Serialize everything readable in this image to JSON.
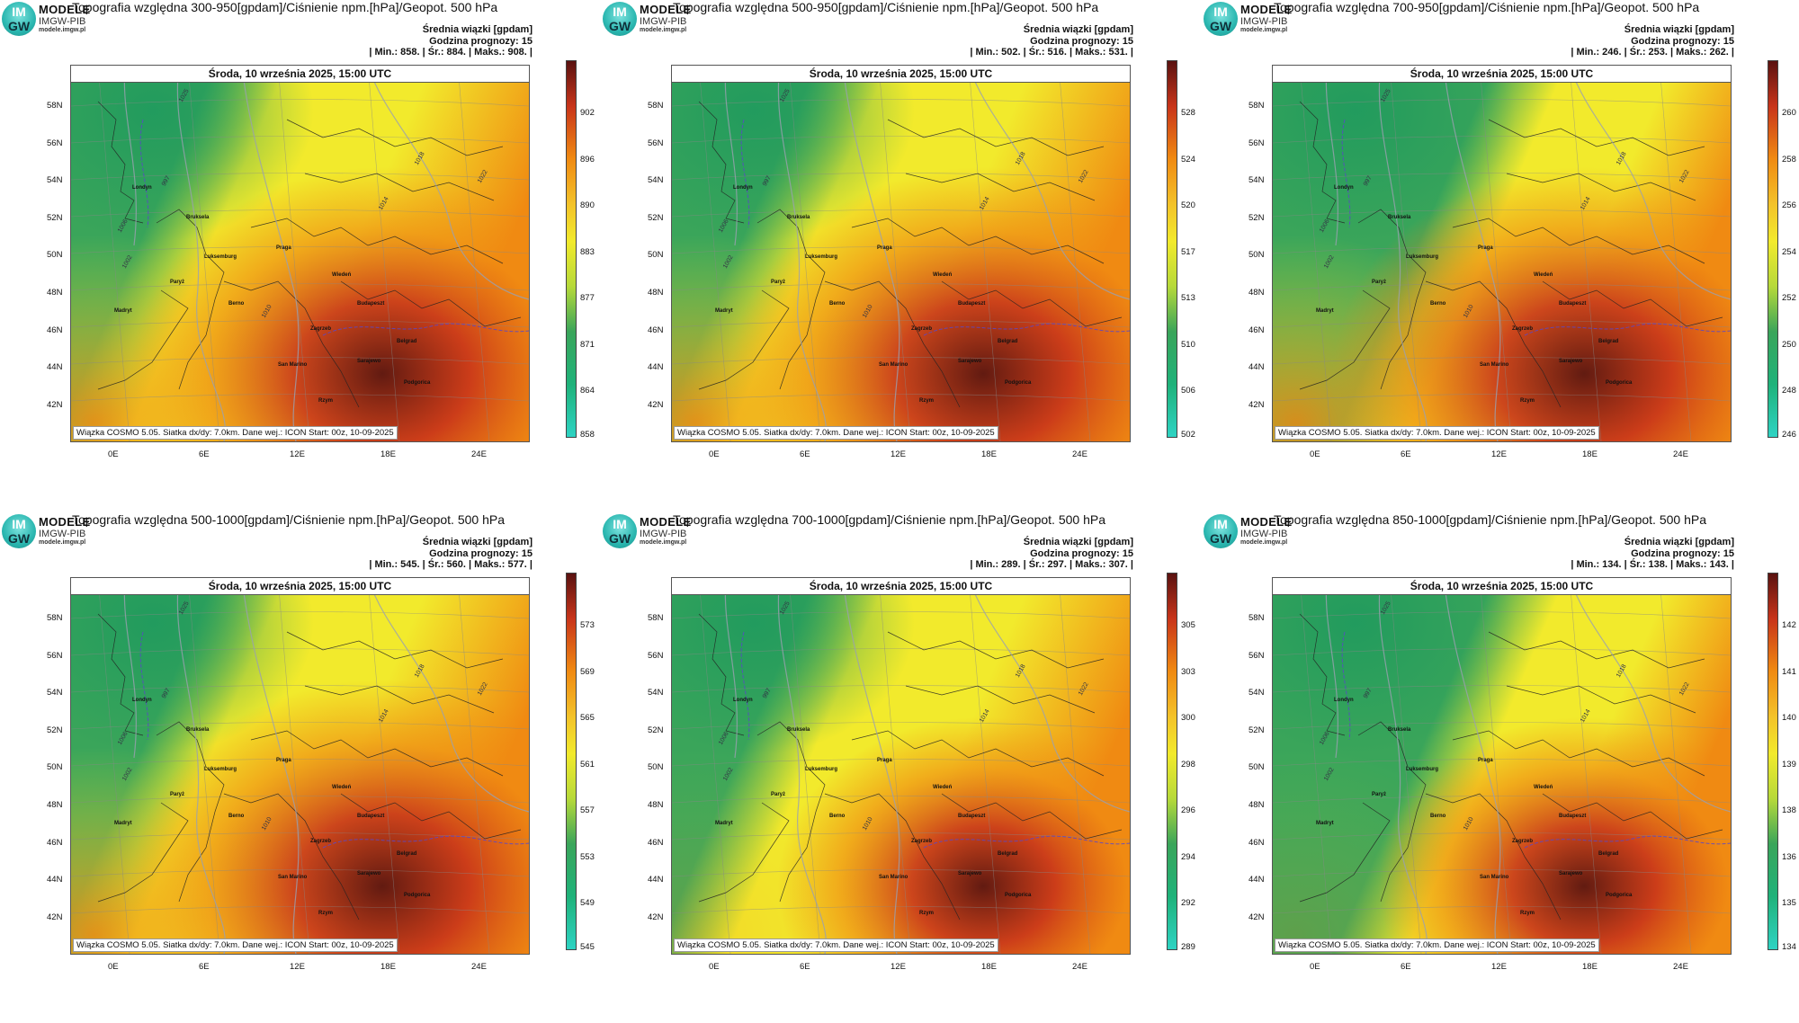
{
  "logo": {
    "line1": "MODELE",
    "line2": "IMGW-PIB",
    "line3": "modele.imgw.pl",
    "circle_top": "IM",
    "circle_bottom": "GW"
  },
  "date_label": "Środa, 10 września 2025, 15:00 UTC",
  "footer": "Wiązka COSMO 5.05. Siatka dx/dy: 7.0km. Dane wej.: ICON Start: 00z, 10-09-2025",
  "info_label": "Średnia wiązki [gpdam]",
  "forecast_hour": "Godzina prognozy: 15",
  "lat_labels": [
    "58N",
    "56N",
    "54N",
    "52N",
    "50N",
    "48N",
    "46N",
    "44N",
    "42N"
  ],
  "lon_labels": [
    "0E",
    "6E",
    "12E",
    "18E",
    "24E"
  ],
  "place_labels": [
    "Londyn",
    "Bruksela",
    "Paryż",
    "Luksemburg",
    "Praga",
    "Berno",
    "Wiedeń",
    "Budapeszt",
    "Zagrzeb",
    "Belgrad",
    "San Marino",
    "Sarajewo",
    "Podgorica",
    "Madryt",
    "Rzym"
  ],
  "isobar_labels": [
    "1025",
    "1022",
    "1018",
    "1014",
    "1010",
    "1006",
    "1002",
    "997"
  ],
  "colors": {
    "low": "#2ed3c3",
    "green": "#3aa55a",
    "yellow": "#f2ea2c",
    "orange": "#f08a12",
    "red": "#c8341a",
    "dark": "#5a1210"
  },
  "panels": [
    {
      "title": "Topografia względna 300-950[gpdam]/Ciśnienie npm.[hPa]/Geopot. 500 hPa",
      "stats": "| Min.:    858. | Śr.:    884. | Maks.:    908. |",
      "colorbar_ticks": [
        "902",
        "896",
        "890",
        "883",
        "877",
        "871",
        "864",
        "858"
      ]
    },
    {
      "title": "Topografia względna 500-950[gpdam]/Ciśnienie npm.[hPa]/Geopot. 500 hPa",
      "stats": "| Min.:    502. | Śr.:    516. | Maks.:    531. |",
      "colorbar_ticks": [
        "528",
        "524",
        "520",
        "517",
        "513",
        "510",
        "506",
        "502"
      ]
    },
    {
      "title": "Topografia względna 700-950[gpdam]/Ciśnienie npm.[hPa]/Geopot. 500 hPa",
      "stats": "| Min.:    246. | Śr.:    253. | Maks.:    262. |",
      "colorbar_ticks": [
        "260",
        "258",
        "256",
        "254",
        "252",
        "250",
        "248",
        "246"
      ]
    },
    {
      "title": "Topografia względna 500-1000[gpdam]/Ciśnienie npm.[hPa]/Geopot. 500 hPa",
      "stats": "| Min.:    545. | Śr.:    560. | Maks.:    577. |",
      "colorbar_ticks": [
        "573",
        "569",
        "565",
        "561",
        "557",
        "553",
        "549",
        "545"
      ]
    },
    {
      "title": "Topografia względna 700-1000[gpdam]/Ciśnienie npm.[hPa]/Geopot. 500 hPa",
      "stats": "| Min.:    289. | Śr.:    297. | Maks.:    307. |",
      "colorbar_ticks": [
        "305",
        "303",
        "300",
        "298",
        "296",
        "294",
        "292",
        "289"
      ]
    },
    {
      "title": "Topografia względna 850-1000[gpdam]/Ciśnienie npm.[hPa]/Geopot. 500 hPa",
      "stats": "| Min.:    134. | Śr.:    138. | Maks.:    143. |",
      "colorbar_ticks": [
        "142",
        "141",
        "140",
        "139",
        "138",
        "136",
        "135",
        "134"
      ]
    }
  ]
}
